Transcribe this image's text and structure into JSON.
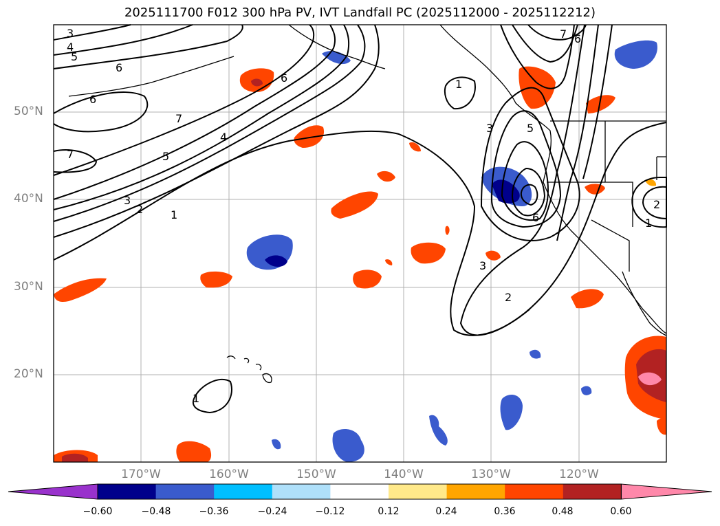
{
  "title": "2025111700 F012 300 hPa PV, IVT Landfall PC (2025112000 - 2025112212)",
  "axes": {
    "lat_labels": [
      "50°N",
      "40°N",
      "30°N",
      "20°N"
    ],
    "lon_labels": [
      "170°W",
      "160°W",
      "150°W",
      "140°W",
      "130°W",
      "120°W"
    ]
  },
  "contour_labels": [
    "3",
    "4",
    "5",
    "6",
    "6",
    "6",
    "7",
    "7",
    "5",
    "4",
    "3",
    "2",
    "1",
    "1",
    "3",
    "2",
    "3",
    "5",
    "7",
    "6",
    "6",
    "1",
    "2",
    "1"
  ],
  "colorbar": {
    "ticks": [
      "−0.60",
      "−0.48",
      "−0.36",
      "−0.24",
      "−0.12",
      "0.12",
      "0.24",
      "0.36",
      "0.48",
      "0.60"
    ],
    "colors": [
      "#9932cc",
      "#00008b",
      "#3a5bcd",
      "#00bfff",
      "#afe0fa",
      "#ffffff",
      "#ffe98a",
      "#ffa500",
      "#ff4500",
      "#b22222",
      "#ff88aa"
    ]
  }
}
